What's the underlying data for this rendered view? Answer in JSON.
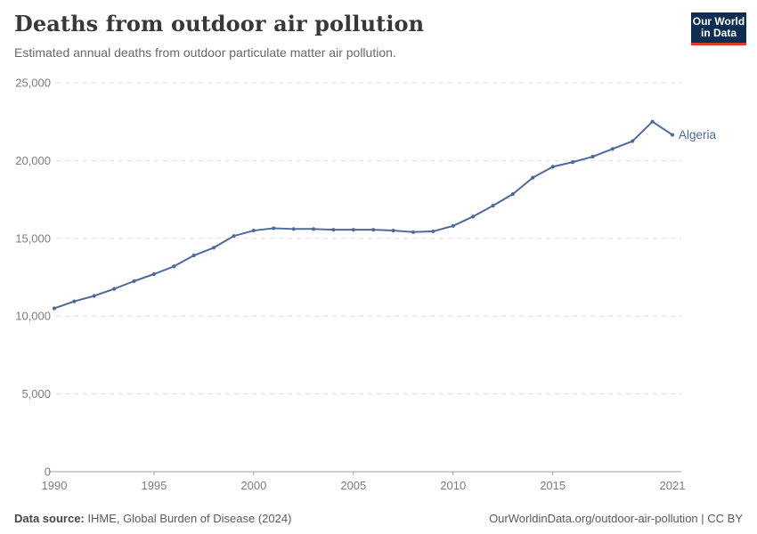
{
  "logo": {
    "line1": "Our World",
    "line2": "in Data"
  },
  "footer": {
    "source_label": "Data source:",
    "source_value": " IHME, Global Burden of Disease (2024)",
    "attribution": "OurWorldinData.org/outdoor-air-pollution | CC BY"
  },
  "colors": {
    "series_line": "#4c6a9c",
    "series_label": "#4c6a9c",
    "grid": "#dedede",
    "axis": "#a1a1a1",
    "tick_text": "#7d7d7d",
    "logo_bg": "#0d2d52",
    "logo_red": "#dc3a2f"
  },
  "chart_data": {
    "type": "line",
    "title": "Deaths from outdoor air pollution",
    "subtitle": "Estimated annual deaths from outdoor particulate matter air pollution.",
    "xlabel": "",
    "ylabel": "",
    "xlim": [
      1990,
      2021
    ],
    "ylim": [
      0,
      25000
    ],
    "grid": "horizontal dashed",
    "legend_position": "end-of-line label",
    "x": [
      1990,
      1991,
      1992,
      1993,
      1994,
      1995,
      1996,
      1997,
      1998,
      1999,
      2000,
      2001,
      2002,
      2003,
      2004,
      2005,
      2006,
      2007,
      2008,
      2009,
      2010,
      2011,
      2012,
      2013,
      2014,
      2015,
      2016,
      2017,
      2018,
      2019,
      2020,
      2021
    ],
    "series": [
      {
        "name": "Algeria",
        "values": [
          10500,
          10950,
          11300,
          11750,
          12250,
          12700,
          13200,
          13900,
          14400,
          15150,
          15500,
          15650,
          15600,
          15600,
          15550,
          15550,
          15550,
          15500,
          15400,
          15450,
          15800,
          16400,
          17100,
          17850,
          18900,
          19600,
          19900,
          20250,
          20750,
          21250,
          22500,
          21650
        ]
      }
    ],
    "y_ticks": {
      "values": [
        0,
        5000,
        10000,
        15000,
        20000,
        25000
      ],
      "labels": [
        "0",
        "5,000",
        "10,000",
        "15,000",
        "20,000",
        "25,000"
      ]
    },
    "x_ticks": {
      "values": [
        1990,
        1995,
        2000,
        2005,
        2010,
        2015,
        2021
      ],
      "labels": [
        "1990",
        "1995",
        "2000",
        "2005",
        "2010",
        "2015",
        "2021"
      ]
    }
  }
}
